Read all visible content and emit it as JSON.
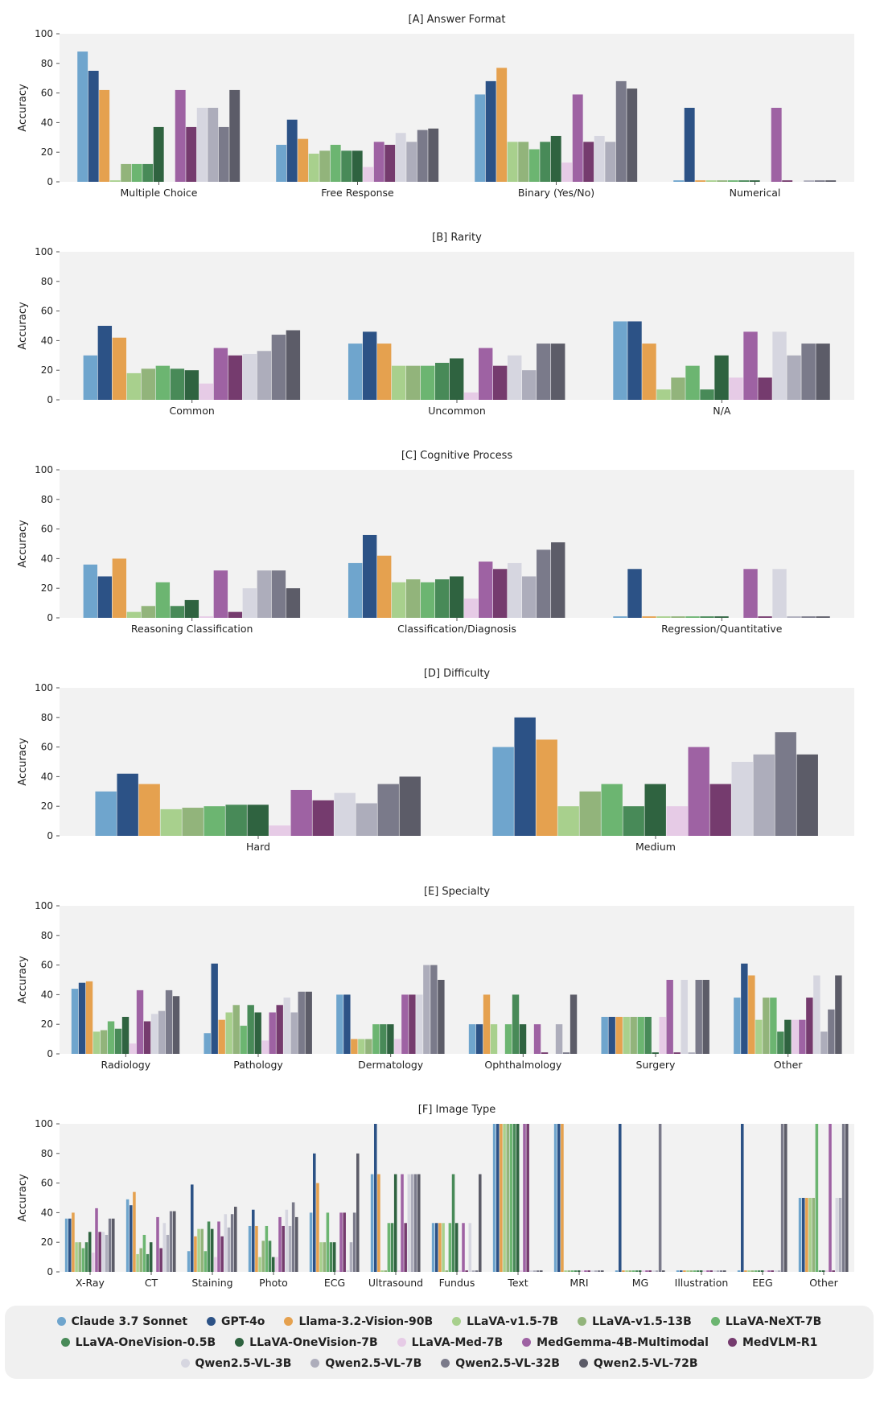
{
  "colors": [
    "#6fa5cd",
    "#2c5286",
    "#e5a14f",
    "#a8d08d",
    "#92b47b",
    "#6cb571",
    "#488a58",
    "#2f6340",
    "#e6cbe6",
    "#9e62a3",
    "#753b6e",
    "#d6d6e0",
    "#adadbb",
    "#7a7a8a",
    "#5c5c68"
  ],
  "legend": [
    "Claude 3.7 Sonnet",
    "GPT-4o",
    "Llama-3.2-Vision-90B",
    "LLaVA-v1.5-7B",
    "LLaVA-v1.5-13B",
    "LLaVA-NeXT-7B",
    "LLaVA-OneVision-0.5B",
    "LLaVA-OneVision-7B",
    "LLaVA-Med-7B",
    "MedGemma-4B-Multimodal",
    "MedVLM-R1",
    "Qwen2.5-VL-3B",
    "Qwen2.5-VL-7B",
    "Qwen2.5-VL-32B",
    "Qwen2.5-VL-72B"
  ],
  "chart_data": [
    {
      "type": "bar",
      "title": "[A] Answer Format",
      "ylabel": "Accuracy",
      "ylim": [
        0,
        100
      ],
      "yticks": [
        0,
        20,
        40,
        60,
        80,
        100
      ],
      "grid": false,
      "categories": [
        "Multiple Choice",
        "Free Response",
        "Binary (Yes/No)",
        "Numerical"
      ],
      "series": [
        {
          "name": "Claude 3.7 Sonnet",
          "values": [
            88,
            25,
            59,
            1
          ]
        },
        {
          "name": "GPT-4o",
          "values": [
            75,
            42,
            68,
            50
          ]
        },
        {
          "name": "Llama-3.2-Vision-90B",
          "values": [
            62,
            29,
            77,
            1
          ]
        },
        {
          "name": "LLaVA-v1.5-7B",
          "values": [
            1,
            19,
            27,
            1
          ]
        },
        {
          "name": "LLaVA-v1.5-13B",
          "values": [
            12,
            21,
            27,
            1
          ]
        },
        {
          "name": "LLaVA-NeXT-7B",
          "values": [
            12,
            25,
            22,
            1
          ]
        },
        {
          "name": "LLaVA-OneVision-0.5B",
          "values": [
            12,
            21,
            27,
            1
          ]
        },
        {
          "name": "LLaVA-OneVision-7B",
          "values": [
            37,
            21,
            31,
            1
          ]
        },
        {
          "name": "LLaVA-Med-7B",
          "values": [
            0,
            10,
            13,
            0
          ]
        },
        {
          "name": "MedGemma-4B-Multimodal",
          "values": [
            62,
            27,
            59,
            50
          ]
        },
        {
          "name": "MedVLM-R1",
          "values": [
            37,
            25,
            27,
            1
          ]
        },
        {
          "name": "Qwen2.5-VL-3B",
          "values": [
            50,
            33,
            31,
            0
          ]
        },
        {
          "name": "Qwen2.5-VL-7B",
          "values": [
            50,
            27,
            27,
            1
          ]
        },
        {
          "name": "Qwen2.5-VL-32B",
          "values": [
            37,
            35,
            68,
            1
          ]
        },
        {
          "name": "Qwen2.5-VL-72B",
          "values": [
            62,
            36,
            63,
            1
          ]
        }
      ]
    },
    {
      "type": "bar",
      "title": "[B] Rarity",
      "ylabel": "Accuracy",
      "ylim": [
        0,
        100
      ],
      "yticks": [
        0,
        20,
        40,
        60,
        80,
        100
      ],
      "grid": false,
      "categories": [
        "Common",
        "Uncommon",
        "N/A"
      ],
      "series": [
        {
          "name": "Claude 3.7 Sonnet",
          "values": [
            30,
            38,
            53
          ]
        },
        {
          "name": "GPT-4o",
          "values": [
            50,
            46,
            53
          ]
        },
        {
          "name": "Llama-3.2-Vision-90B",
          "values": [
            42,
            38,
            38
          ]
        },
        {
          "name": "LLaVA-v1.5-7B",
          "values": [
            18,
            23,
            7
          ]
        },
        {
          "name": "LLaVA-v1.5-13B",
          "values": [
            21,
            23,
            15
          ]
        },
        {
          "name": "LLaVA-NeXT-7B",
          "values": [
            23,
            23,
            23
          ]
        },
        {
          "name": "LLaVA-OneVision-0.5B",
          "values": [
            21,
            25,
            7
          ]
        },
        {
          "name": "LLaVA-OneVision-7B",
          "values": [
            20,
            28,
            30
          ]
        },
        {
          "name": "LLaVA-Med-7B",
          "values": [
            11,
            5,
            15
          ]
        },
        {
          "name": "MedGemma-4B-Multimodal",
          "values": [
            35,
            35,
            46
          ]
        },
        {
          "name": "MedVLM-R1",
          "values": [
            30,
            23,
            15
          ]
        },
        {
          "name": "Qwen2.5-VL-3B",
          "values": [
            31,
            30,
            46
          ]
        },
        {
          "name": "Qwen2.5-VL-7B",
          "values": [
            33,
            20,
            30
          ]
        },
        {
          "name": "Qwen2.5-VL-32B",
          "values": [
            44,
            38,
            38
          ]
        },
        {
          "name": "Qwen2.5-VL-72B",
          "values": [
            47,
            38,
            38
          ]
        }
      ]
    },
    {
      "type": "bar",
      "title": "[C] Cognitive Process",
      "ylabel": "Accuracy",
      "ylim": [
        0,
        100
      ],
      "yticks": [
        0,
        20,
        40,
        60,
        80,
        100
      ],
      "grid": false,
      "categories": [
        "Reasoning Classification",
        "Classification/Diagnosis",
        "Regression/Quantitative"
      ],
      "series": [
        {
          "name": "Claude 3.7 Sonnet",
          "values": [
            36,
            37,
            1
          ]
        },
        {
          "name": "GPT-4o",
          "values": [
            28,
            56,
            33
          ]
        },
        {
          "name": "Llama-3.2-Vision-90B",
          "values": [
            40,
            42,
            1
          ]
        },
        {
          "name": "LLaVA-v1.5-7B",
          "values": [
            4,
            24,
            1
          ]
        },
        {
          "name": "LLaVA-v1.5-13B",
          "values": [
            8,
            26,
            1
          ]
        },
        {
          "name": "LLaVA-NeXT-7B",
          "values": [
            24,
            24,
            1
          ]
        },
        {
          "name": "LLaVA-OneVision-0.5B",
          "values": [
            8,
            26,
            1
          ]
        },
        {
          "name": "LLaVA-OneVision-7B",
          "values": [
            12,
            28,
            1
          ]
        },
        {
          "name": "LLaVA-Med-7B",
          "values": [
            1,
            13,
            0
          ]
        },
        {
          "name": "MedGemma-4B-Multimodal",
          "values": [
            32,
            38,
            33
          ]
        },
        {
          "name": "MedVLM-R1",
          "values": [
            4,
            33,
            1
          ]
        },
        {
          "name": "Qwen2.5-VL-3B",
          "values": [
            20,
            37,
            33
          ]
        },
        {
          "name": "Qwen2.5-VL-7B",
          "values": [
            32,
            28,
            1
          ]
        },
        {
          "name": "Qwen2.5-VL-32B",
          "values": [
            32,
            46,
            1
          ]
        },
        {
          "name": "Qwen2.5-VL-72B",
          "values": [
            20,
            51,
            1
          ]
        }
      ]
    },
    {
      "type": "bar",
      "title": "[D] Difficulty",
      "ylabel": "Accuracy",
      "ylim": [
        0,
        100
      ],
      "yticks": [
        0,
        20,
        40,
        60,
        80,
        100
      ],
      "grid": false,
      "categories": [
        "Hard",
        "Medium"
      ],
      "series": [
        {
          "name": "Claude 3.7 Sonnet",
          "values": [
            30,
            60
          ]
        },
        {
          "name": "GPT-4o",
          "values": [
            42,
            80
          ]
        },
        {
          "name": "Llama-3.2-Vision-90B",
          "values": [
            35,
            65
          ]
        },
        {
          "name": "LLaVA-v1.5-7B",
          "values": [
            18,
            20
          ]
        },
        {
          "name": "LLaVA-v1.5-13B",
          "values": [
            19,
            30
          ]
        },
        {
          "name": "LLaVA-NeXT-7B",
          "values": [
            20,
            35
          ]
        },
        {
          "name": "LLaVA-OneVision-0.5B",
          "values": [
            21,
            20
          ]
        },
        {
          "name": "LLaVA-OneVision-7B",
          "values": [
            21,
            35
          ]
        },
        {
          "name": "LLaVA-Med-7B",
          "values": [
            7,
            20
          ]
        },
        {
          "name": "MedGemma-4B-Multimodal",
          "values": [
            31,
            60
          ]
        },
        {
          "name": "MedVLM-R1",
          "values": [
            24,
            35
          ]
        },
        {
          "name": "Qwen2.5-VL-3B",
          "values": [
            29,
            50
          ]
        },
        {
          "name": "Qwen2.5-VL-7B",
          "values": [
            22,
            55
          ]
        },
        {
          "name": "Qwen2.5-VL-32B",
          "values": [
            35,
            70
          ]
        },
        {
          "name": "Qwen2.5-VL-72B",
          "values": [
            40,
            55
          ]
        }
      ]
    },
    {
      "type": "bar",
      "title": "[E] Specialty",
      "ylabel": "Accuracy",
      "ylim": [
        0,
        100
      ],
      "yticks": [
        0,
        20,
        40,
        60,
        80,
        100
      ],
      "grid": false,
      "categories": [
        "Radiology",
        "Pathology",
        "Dermatology",
        "Ophthalmology",
        "Surgery",
        "Other"
      ],
      "series": [
        {
          "name": "Claude 3.7 Sonnet",
          "values": [
            44,
            14,
            40,
            20,
            25,
            38
          ]
        },
        {
          "name": "GPT-4o",
          "values": [
            48,
            61,
            40,
            20,
            25,
            61
          ]
        },
        {
          "name": "Llama-3.2-Vision-90B",
          "values": [
            49,
            23,
            10,
            40,
            25,
            53
          ]
        },
        {
          "name": "LLaVA-v1.5-7B",
          "values": [
            15,
            28,
            10,
            20,
            25,
            23
          ]
        },
        {
          "name": "LLaVA-v1.5-13B",
          "values": [
            16,
            33,
            10,
            0,
            25,
            38
          ]
        },
        {
          "name": "LLaVA-NeXT-7B",
          "values": [
            22,
            19,
            20,
            20,
            25,
            38
          ]
        },
        {
          "name": "LLaVA-OneVision-0.5B",
          "values": [
            17,
            33,
            20,
            40,
            25,
            15
          ]
        },
        {
          "name": "LLaVA-OneVision-7B",
          "values": [
            25,
            28,
            20,
            20,
            1,
            23
          ]
        },
        {
          "name": "LLaVA-Med-7B",
          "values": [
            7,
            9,
            10,
            0,
            25,
            23
          ]
        },
        {
          "name": "MedGemma-4B-Multimodal",
          "values": [
            43,
            28,
            40,
            20,
            50,
            23
          ]
        },
        {
          "name": "MedVLM-R1",
          "values": [
            22,
            33,
            40,
            1,
            1,
            38
          ]
        },
        {
          "name": "Qwen2.5-VL-3B",
          "values": [
            27,
            38,
            40,
            0,
            50,
            53
          ]
        },
        {
          "name": "Qwen2.5-VL-7B",
          "values": [
            29,
            28,
            60,
            20,
            1,
            15
          ]
        },
        {
          "name": "Qwen2.5-VL-32B",
          "values": [
            43,
            42,
            60,
            1,
            50,
            30
          ]
        },
        {
          "name": "Qwen2.5-VL-72B",
          "values": [
            39,
            42,
            50,
            40,
            50,
            53
          ]
        }
      ]
    },
    {
      "type": "bar",
      "title": "[F] Image Type",
      "ylabel": "Accuracy",
      "ylim": [
        0,
        100
      ],
      "yticks": [
        0,
        20,
        40,
        60,
        80,
        100
      ],
      "grid": false,
      "categories": [
        "X-Ray",
        "CT",
        "Staining",
        "Photo",
        "ECG",
        "Ultrasound",
        "Fundus",
        "Text",
        "MRI",
        "MG",
        "Illustration",
        "EEG",
        "Other"
      ],
      "series": [
        {
          "name": "Claude 3.7 Sonnet",
          "values": [
            36,
            49,
            14,
            31,
            40,
            66,
            33,
            100,
            100,
            1,
            1,
            1,
            50
          ]
        },
        {
          "name": "GPT-4o",
          "values": [
            36,
            45,
            59,
            42,
            80,
            100,
            33,
            100,
            100,
            100,
            1,
            100,
            50
          ]
        },
        {
          "name": "Llama-3.2-Vision-90B",
          "values": [
            40,
            54,
            24,
            31,
            60,
            66,
            33,
            100,
            100,
            1,
            1,
            1,
            50
          ]
        },
        {
          "name": "LLaVA-v1.5-7B",
          "values": [
            20,
            12,
            29,
            10,
            20,
            1,
            33,
            100,
            1,
            1,
            1,
            1,
            50
          ]
        },
        {
          "name": "LLaVA-v1.5-13B",
          "values": [
            20,
            16,
            29,
            21,
            20,
            1,
            1,
            100,
            1,
            1,
            1,
            1,
            50
          ]
        },
        {
          "name": "LLaVA-NeXT-7B",
          "values": [
            16,
            25,
            14,
            31,
            40,
            33,
            33,
            100,
            1,
            1,
            1,
            1,
            100
          ]
        },
        {
          "name": "LLaVA-OneVision-0.5B",
          "values": [
            20,
            12,
            34,
            21,
            20,
            33,
            66,
            100,
            1,
            1,
            1,
            1,
            1
          ]
        },
        {
          "name": "LLaVA-OneVision-7B",
          "values": [
            27,
            20,
            29,
            10,
            20,
            66,
            33,
            100,
            1,
            1,
            1,
            1,
            1
          ]
        },
        {
          "name": "LLaVA-Med-7B",
          "values": [
            13,
            0,
            10,
            10,
            1,
            1,
            1,
            1,
            1,
            1,
            1,
            1,
            1
          ]
        },
        {
          "name": "MedGemma-4B-Multimodal",
          "values": [
            43,
            37,
            34,
            37,
            40,
            66,
            33,
            100,
            1,
            1,
            1,
            1,
            100
          ]
        },
        {
          "name": "MedVLM-R1",
          "values": [
            27,
            16,
            24,
            31,
            40,
            33,
            1,
            100,
            1,
            1,
            1,
            1,
            1
          ]
        },
        {
          "name": "Qwen2.5-VL-3B",
          "values": [
            27,
            33,
            39,
            42,
            1,
            66,
            33,
            1,
            1,
            1,
            1,
            1,
            50
          ]
        },
        {
          "name": "Qwen2.5-VL-7B",
          "values": [
            25,
            25,
            30,
            31,
            20,
            66,
            1,
            1,
            1,
            1,
            1,
            1,
            50
          ]
        },
        {
          "name": "Qwen2.5-VL-32B",
          "values": [
            36,
            41,
            39,
            47,
            40,
            66,
            1,
            1,
            1,
            100,
            1,
            100,
            100
          ]
        },
        {
          "name": "Qwen2.5-VL-72B",
          "values": [
            36,
            41,
            44,
            37,
            80,
            66,
            66,
            1,
            1,
            1,
            1,
            100,
            100
          ]
        }
      ]
    }
  ]
}
